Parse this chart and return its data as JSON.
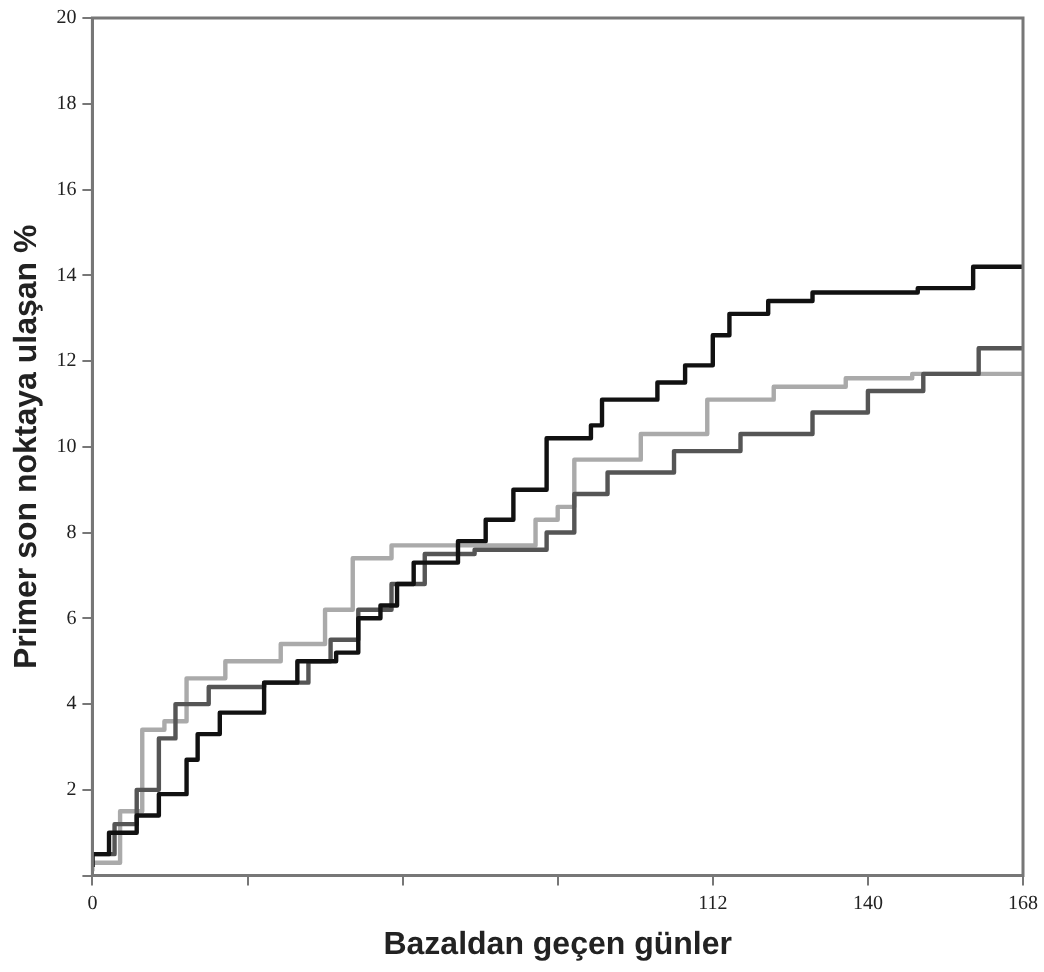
{
  "chart_data": {
    "type": "step",
    "xlabel": "Bazaldan geçen günler",
    "ylabel": "Primer son noktaya ulaşan %",
    "xlim": [
      0,
      168
    ],
    "xticks": [
      0,
      {
        "value": 28,
        "label": null
      },
      {
        "value": 56,
        "label": null
      },
      {
        "value": 84,
        "label": null
      },
      112,
      140,
      168
    ],
    "ylim": [
      0,
      20
    ],
    "yticks": [
      {
        "value": 0,
        "label": null
      },
      2,
      4,
      6,
      8,
      10,
      12,
      14,
      16,
      18,
      20
    ],
    "grid": false,
    "legend": false,
    "marker": "none",
    "line_style": "solid",
    "series": [
      {
        "color": "#111111",
        "x": [
          0,
          3,
          8,
          12,
          17,
          19,
          23,
          31,
          37,
          44,
          48,
          52,
          55,
          58,
          66,
          71,
          76,
          82,
          90,
          92,
          102,
          107,
          112,
          115,
          122,
          130,
          149,
          159,
          168
        ],
        "values": [
          0.2,
          0.5,
          1.0,
          1.4,
          1.9,
          2.7,
          3.3,
          3.8,
          4.5,
          5.0,
          5.2,
          6.0,
          6.3,
          6.8,
          7.3,
          7.8,
          8.3,
          9.0,
          10.2,
          10.5,
          11.1,
          11.5,
          11.9,
          12.6,
          13.1,
          13.4,
          13.6,
          13.7,
          14.2
        ]
      },
      {
        "color": "#555555",
        "x": [
          0,
          4,
          8,
          12,
          15,
          21,
          31,
          39,
          43,
          48,
          54,
          60,
          69,
          82,
          87,
          93,
          105,
          117,
          130,
          140,
          150,
          160,
          168
        ],
        "values": [
          0.2,
          0.5,
          1.2,
          2.0,
          3.2,
          4.0,
          4.4,
          4.5,
          5.0,
          5.5,
          6.2,
          6.8,
          7.5,
          7.6,
          8.0,
          8.9,
          9.4,
          9.9,
          10.3,
          10.8,
          11.3,
          11.7,
          12.3
        ]
      },
      {
        "color": "#aaaaaa",
        "x": [
          0,
          5,
          9,
          13,
          17,
          24,
          34,
          42,
          47,
          54,
          67,
          80,
          84,
          87,
          99,
          111,
          123,
          136,
          148,
          168
        ],
        "values": [
          0.1,
          0.3,
          1.5,
          3.4,
          3.6,
          4.6,
          5.0,
          5.4,
          6.2,
          7.4,
          7.7,
          7.7,
          8.3,
          8.6,
          9.7,
          10.3,
          11.1,
          11.4,
          11.6,
          11.7
        ]
      }
    ]
  }
}
